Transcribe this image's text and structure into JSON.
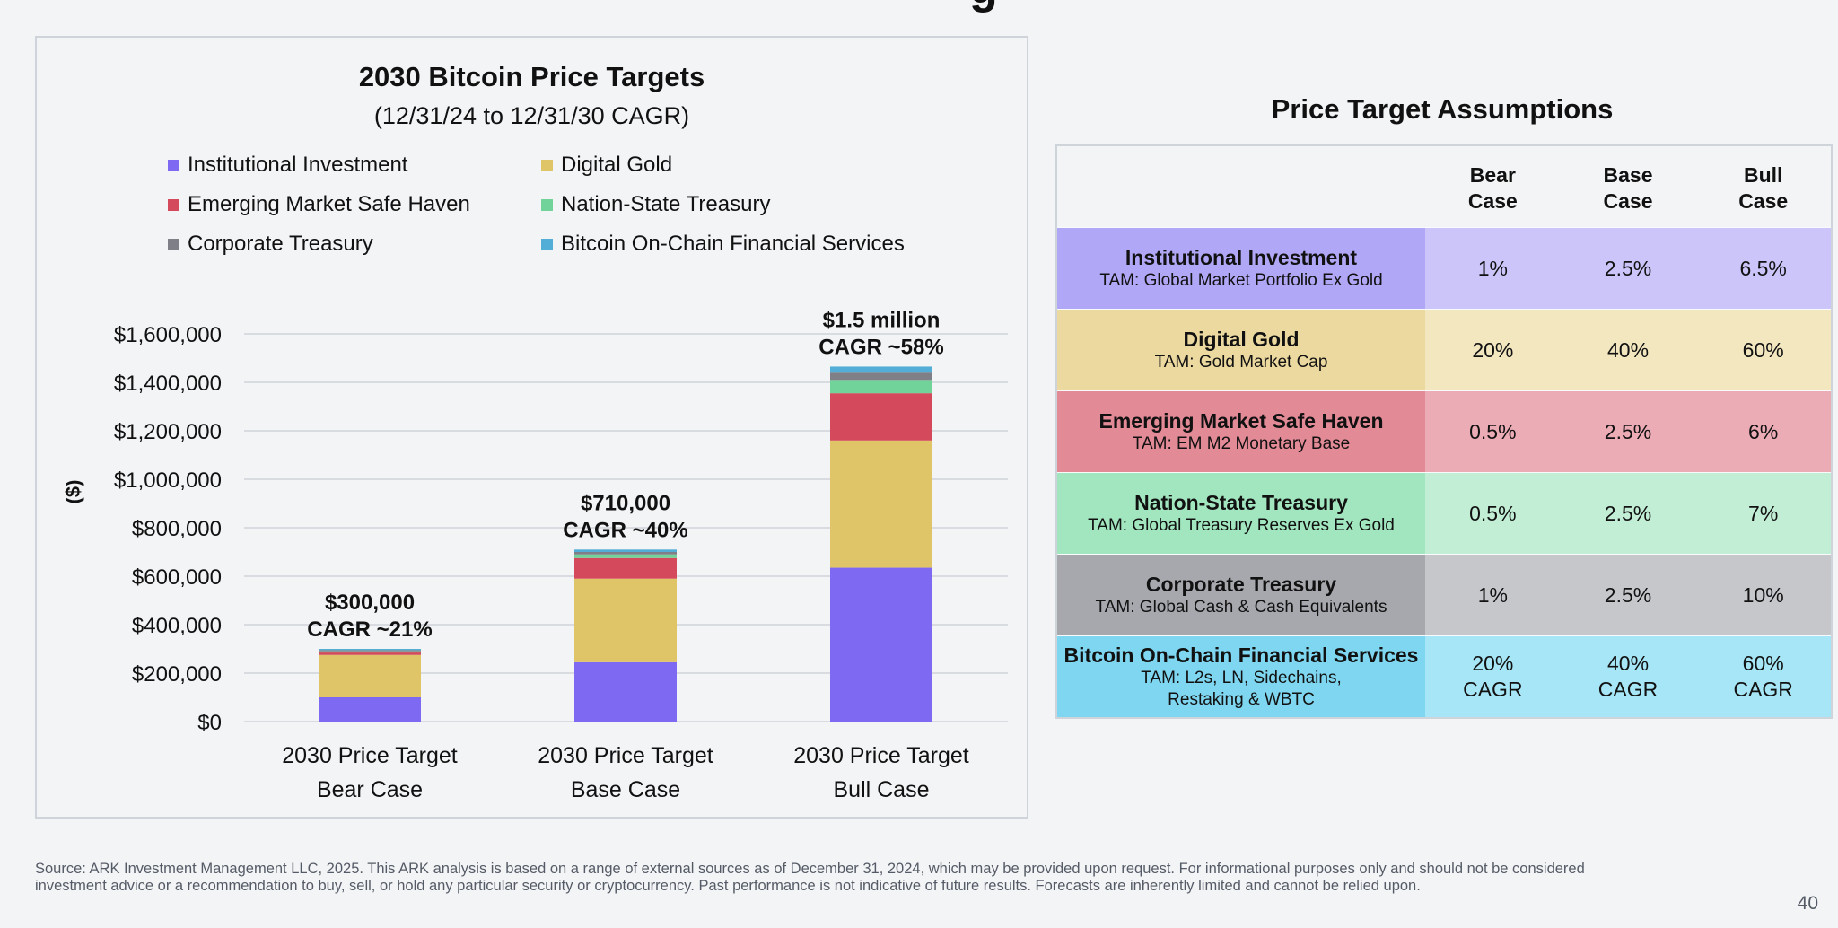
{
  "slide": {
    "top_fragment": "g",
    "page_number": "40",
    "footnote": "Source: ARK Investment Management LLC, 2025. This ARK analysis is based on a range of external sources as of December 31, 2024, which may be provided upon request. For informational purposes only and should not be considered investment advice or a recommendation to buy, sell, or hold any particular security or cryptocurrency. Past performance is not indicative of future results. Forecasts are inherently limited and cannot be relied upon."
  },
  "colors": {
    "institutional": "#7e69f2",
    "digital_gold": "#dfc468",
    "emerging": "#d44a5c",
    "nation_state": "#72d39a",
    "corporate": "#7f7f88",
    "onchain": "#52aed6",
    "grid": "#cfd3da"
  },
  "chart_data": {
    "type": "bar",
    "stacked": true,
    "title": "2030 Bitcoin Price Targets",
    "subtitle": "(12/31/24 to 12/31/30 CAGR)",
    "ylabel": "($)",
    "xlabel": "",
    "ylim": [
      0,
      1600000
    ],
    "yticks": [
      0,
      200000,
      400000,
      600000,
      800000,
      1000000,
      1200000,
      1400000,
      1600000
    ],
    "ytick_labels": [
      "$0",
      "$200,000",
      "$400,000",
      "$600,000",
      "$800,000",
      "$1,000,000",
      "$1,200,000",
      "$1,400,000",
      "$1,600,000"
    ],
    "grid": true,
    "legend_position": "top",
    "categories": [
      [
        "2030 Price Target",
        "Bear Case"
      ],
      [
        "2030 Price Target",
        "Base Case"
      ],
      [
        "2030 Price Target",
        "Bull Case"
      ]
    ],
    "series": [
      {
        "name": "Institutional Investment",
        "color_key": "institutional",
        "values": [
          100000,
          245000,
          635000
        ]
      },
      {
        "name": "Digital Gold",
        "color_key": "digital_gold",
        "values": [
          175000,
          345000,
          525000
        ]
      },
      {
        "name": "Emerging Market Safe Haven",
        "color_key": "emerging",
        "values": [
          10000,
          85000,
          195000
        ]
      },
      {
        "name": "Nation-State Treasury",
        "color_key": "nation_state",
        "values": [
          5000,
          15000,
          55000
        ]
      },
      {
        "name": "Corporate Treasury",
        "color_key": "corporate",
        "values": [
          5000,
          10000,
          30000
        ]
      },
      {
        "name": "Bitcoin On-Chain Financial Services",
        "color_key": "onchain",
        "values": [
          5000,
          10000,
          25000
        ]
      }
    ],
    "bar_annotations": [
      [
        "$300,000",
        "CAGR ~21%"
      ],
      [
        "$710,000",
        "CAGR ~40%"
      ],
      [
        "$1.5 million",
        "CAGR ~58%"
      ]
    ]
  },
  "table": {
    "title": "Price Target Assumptions",
    "headers": [
      "Bear\nCase",
      "Base\nCase",
      "Bull\nCase"
    ],
    "rows": [
      {
        "name": "Institutional Investment",
        "tam": "TAM: Global Market Portfolio Ex Gold",
        "values": [
          "1%",
          "2.5%",
          "6.5%"
        ],
        "label_color": "#b0a7f6",
        "value_color": "#cbc5f9"
      },
      {
        "name": "Digital Gold",
        "tam": "TAM: Gold Market Cap",
        "values": [
          "20%",
          "40%",
          "60%"
        ],
        "label_color": "#ecd9a0",
        "value_color": "#f3e7c0"
      },
      {
        "name": "Emerging Market Safe Haven",
        "tam": "TAM: EM M2 Monetary Base",
        "values": [
          "0.5%",
          "2.5%",
          "6%"
        ],
        "label_color": "#e38a97",
        "value_color": "#ecacb6"
      },
      {
        "name": "Nation-State Treasury",
        "tam": "TAM: Global Treasury Reserves Ex Gold",
        "values": [
          "0.5%",
          "2.5%",
          "7%"
        ],
        "label_color": "#a2e6c0",
        "value_color": "#c2eed6"
      },
      {
        "name": "Corporate Treasury",
        "tam": "TAM: Global Cash & Cash Equivalents",
        "values": [
          "1%",
          "2.5%",
          "10%"
        ],
        "label_color": "#a7a8ae",
        "value_color": "#c6c7cb"
      },
      {
        "name": "Bitcoin On-Chain Financial Services",
        "tam": "TAM: L2s, LN, Sidechains,\nRestaking & WBTC",
        "values": [
          "20%\nCAGR",
          "40%\nCAGR",
          "60%\nCAGR"
        ],
        "label_color": "#7fd6f0",
        "value_color": "#a6e6f6"
      }
    ]
  }
}
